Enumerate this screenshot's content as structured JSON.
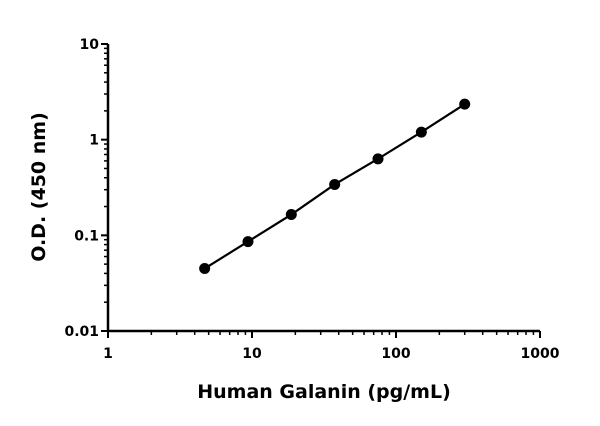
{
  "chart_data": {
    "type": "line",
    "title": "",
    "xlabel": "Human Galanin (pg/mL)",
    "ylabel": "O.D. (450 nm)",
    "xscale": "log",
    "yscale": "log",
    "xlim": [
      1,
      1000
    ],
    "ylim": [
      0.01,
      10
    ],
    "xticks": [
      "1",
      "10",
      "100",
      "1000"
    ],
    "yticks": [
      "0.01",
      "0.1",
      "1",
      "10"
    ],
    "grid": false,
    "series": [
      {
        "x": [
          4.69,
          9.38,
          18.75,
          37.5,
          75,
          150,
          300
        ],
        "y": [
          0.045,
          0.086,
          0.165,
          0.34,
          0.63,
          1.2,
          2.35
        ],
        "color": "#000000",
        "marker": "circle"
      }
    ]
  }
}
